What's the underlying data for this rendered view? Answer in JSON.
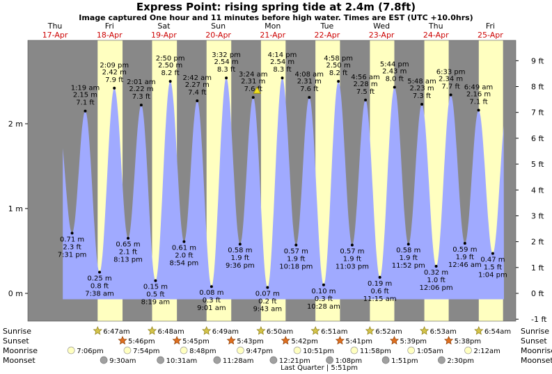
{
  "title": "Express Point: rising  spring tide at 2.4m (7.8ft)",
  "subtitle": "Image captured One hour and 11 minutes before high water. Times are EST (UTC +10.0hrs)",
  "days": [
    {
      "day": "Thu",
      "date": "17-Apr"
    },
    {
      "day": "Fri",
      "date": "18-Apr"
    },
    {
      "day": "Sat",
      "date": "19-Apr"
    },
    {
      "day": "Sun",
      "date": "20-Apr"
    },
    {
      "day": "Mon",
      "date": "21-Apr"
    },
    {
      "day": "Tue",
      "date": "22-Apr"
    },
    {
      "day": "Wed",
      "date": "23-Apr"
    },
    {
      "day": "Thu",
      "date": "24-Apr"
    },
    {
      "day": "Fri",
      "date": "25-Apr"
    }
  ],
  "colors": {
    "night": "#888888",
    "day": "#ffffc0",
    "water": "#a0aaff",
    "sun": "#d4c44a",
    "sunset": "#e07020",
    "moon": "#ffffc0",
    "moonset": "#a0a0a0"
  },
  "chart_data": {
    "type": "area",
    "ylabel_left_unit": "m",
    "ylabel_right_unit": "ft",
    "left_ticks": [
      "0 m",
      "1 m",
      "2 m"
    ],
    "right_ticks": [
      "-1 ft",
      "0 ft",
      "1 ft",
      "2 ft",
      "3 ft",
      "4 ft",
      "5 ft",
      "6 ft",
      "7 ft",
      "8 ft",
      "9 ft"
    ],
    "current_marker": {
      "time_hours": 101.1,
      "height_m": 2.4
    },
    "tides": [
      {
        "t": 19.52,
        "h": 0.71,
        "m": "0.71 m",
        "f": "2.3 ft",
        "time": "7:31 pm",
        "type": "low"
      },
      {
        "t": 25.32,
        "h": 2.15,
        "m": "2.15 m",
        "f": "7.1 ft",
        "time": "1:19 am",
        "type": "high"
      },
      {
        "t": 31.63,
        "h": 0.25,
        "m": "0.25 m",
        "f": "0.8 ft",
        "time": "7:38 am",
        "type": "low"
      },
      {
        "t": 38.15,
        "h": 2.42,
        "m": "2.42 m",
        "f": "7.9 ft",
        "time": "2:09 pm",
        "type": "high"
      },
      {
        "t": 44.22,
        "h": 0.65,
        "m": "0.65 m",
        "f": "2.1 ft",
        "time": "8:13 pm",
        "type": "low"
      },
      {
        "t": 50.02,
        "h": 2.22,
        "m": "2.22 m",
        "f": "7.3 ft",
        "time": "2:01 am",
        "type": "high"
      },
      {
        "t": 56.32,
        "h": 0.15,
        "m": "0.15 m",
        "f": "0.5 ft",
        "time": "8:19 am",
        "type": "low"
      },
      {
        "t": 62.83,
        "h": 2.5,
        "m": "2.50 m",
        "f": "8.2 ft",
        "time": "2:50 pm",
        "type": "high"
      },
      {
        "t": 68.9,
        "h": 0.61,
        "m": "0.61 m",
        "f": "2.0 ft",
        "time": "8:54 pm",
        "type": "low"
      },
      {
        "t": 74.7,
        "h": 2.27,
        "m": "2.27 m",
        "f": "7.4 ft",
        "time": "2:42 am",
        "type": "high"
      },
      {
        "t": 81.02,
        "h": 0.08,
        "m": "0.08 m",
        "f": "0.3 ft",
        "time": "9:01 am",
        "type": "low"
      },
      {
        "t": 87.53,
        "h": 2.54,
        "m": "2.54 m",
        "f": "8.3 ft",
        "time": "3:32 pm",
        "type": "high"
      },
      {
        "t": 93.6,
        "h": 0.58,
        "m": "0.58 m",
        "f": "1.9 ft",
        "time": "9:36 pm",
        "type": "low"
      },
      {
        "t": 99.4,
        "h": 2.31,
        "m": "2.31 m",
        "f": "7.6 ft",
        "time": "3:24 am",
        "type": "high"
      },
      {
        "t": 105.72,
        "h": 0.07,
        "m": "0.07 m",
        "f": "0.2 ft",
        "time": "9:43 am",
        "type": "low"
      },
      {
        "t": 112.23,
        "h": 2.54,
        "m": "2.54 m",
        "f": "8.3 ft",
        "time": "4:14 pm",
        "type": "high"
      },
      {
        "t": 118.3,
        "h": 0.57,
        "m": "0.57 m",
        "f": "1.9 ft",
        "time": "10:18 pm",
        "type": "low"
      },
      {
        "t": 124.13,
        "h": 2.31,
        "m": "2.31 m",
        "f": "7.6 ft",
        "time": "4:08 am",
        "type": "high"
      },
      {
        "t": 130.47,
        "h": 0.1,
        "m": "0.10 m",
        "f": "0.3 ft",
        "time": "10:28 am",
        "type": "low"
      },
      {
        "t": 136.97,
        "h": 2.5,
        "m": "2.50 m",
        "f": "8.2 ft",
        "time": "4:58 pm",
        "type": "high"
      },
      {
        "t": 143.05,
        "h": 0.57,
        "m": "0.57 m",
        "f": "1.9 ft",
        "time": "11:03 pm",
        "type": "low"
      },
      {
        "t": 148.93,
        "h": 2.28,
        "m": "2.28 m",
        "f": "7.5 ft",
        "time": "4:56 am",
        "type": "high"
      },
      {
        "t": 155.25,
        "h": 0.19,
        "m": "0.19 m",
        "f": "0.6 ft",
        "time": "11:15 am",
        "type": "low"
      },
      {
        "t": 161.73,
        "h": 2.43,
        "m": "2.43 m",
        "f": "8.0 ft",
        "time": "5:44 pm",
        "type": "high"
      },
      {
        "t": 167.87,
        "h": 0.58,
        "m": "0.58 m",
        "f": "1.9 ft",
        "time": "11:52 pm",
        "type": "low"
      },
      {
        "t": 173.8,
        "h": 2.23,
        "m": "2.23 m",
        "f": "7.3 ft",
        "time": "5:48 am",
        "type": "high"
      },
      {
        "t": 180.1,
        "h": 0.32,
        "m": "0.32 m",
        "f": "1.0 ft",
        "time": "12:06 pm",
        "type": "low"
      },
      {
        "t": 186.55,
        "h": 2.34,
        "m": "2.34 m",
        "f": "7.7 ft",
        "time": "6:33 pm",
        "type": "high"
      },
      {
        "t": 192.77,
        "h": 0.59,
        "m": "0.59 m",
        "f": "1.9 ft",
        "time": "12:46 am",
        "type": "low"
      },
      {
        "t": 198.82,
        "h": 2.16,
        "m": "2.16 m",
        "f": "7.1 ft",
        "time": "6:49 am",
        "type": "high"
      },
      {
        "t": 205.07,
        "h": 0.47,
        "m": "0.47 m",
        "f": "1.5 ft",
        "time": "1:04 pm",
        "type": "low"
      }
    ],
    "sun": [
      {
        "rise_t": 30.78,
        "set_t": 41.77
      },
      {
        "rise_t": 54.8,
        "set_t": 65.75
      },
      {
        "rise_t": 78.82,
        "set_t": 89.72
      },
      {
        "rise_t": 102.83,
        "set_t": 113.7
      },
      {
        "rise_t": 126.85,
        "set_t": 137.68
      },
      {
        "rise_t": 150.87,
        "set_t": 161.65
      },
      {
        "rise_t": 174.88,
        "set_t": 185.63
      },
      {
        "rise_t": 198.9,
        "set_t": 209.6
      }
    ]
  },
  "rows": {
    "labels": [
      "Sunrise",
      "Sunset",
      "Moonrise",
      "Moonset"
    ],
    "sunrise": [
      {
        "t": 30.78,
        "label": "6:47am"
      },
      {
        "t": 54.8,
        "label": "6:48am"
      },
      {
        "t": 78.82,
        "label": "6:49am"
      },
      {
        "t": 102.83,
        "label": "6:50am"
      },
      {
        "t": 126.85,
        "label": "6:51am"
      },
      {
        "t": 150.87,
        "label": "6:52am"
      },
      {
        "t": 174.88,
        "label": "6:53am"
      },
      {
        "t": 198.9,
        "label": "6:54am"
      }
    ],
    "sunset": [
      {
        "t": 41.77,
        "label": "5:46pm"
      },
      {
        "t": 65.75,
        "label": "5:45pm"
      },
      {
        "t": 89.72,
        "label": "5:43pm"
      },
      {
        "t": 113.7,
        "label": "5:42pm"
      },
      {
        "t": 137.68,
        "label": "5:41pm"
      },
      {
        "t": 161.65,
        "label": "5:39pm"
      },
      {
        "t": 185.63,
        "label": "5:38pm"
      }
    ],
    "moonrise": [
      {
        "t": 19.1,
        "label": "7:06pm"
      },
      {
        "t": 43.9,
        "label": "7:54pm"
      },
      {
        "t": 68.8,
        "label": "8:48pm"
      },
      {
        "t": 93.78,
        "label": "9:47pm"
      },
      {
        "t": 118.85,
        "label": "10:51pm"
      },
      {
        "t": 143.97,
        "label": "11:58pm"
      },
      {
        "t": 169.08,
        "label": "1:05am"
      },
      {
        "t": 194.2,
        "label": "2:12am"
      }
    ],
    "moonset": [
      {
        "t": 33.5,
        "label": "9:30am"
      },
      {
        "t": 58.52,
        "label": "10:31am"
      },
      {
        "t": 83.47,
        "label": "11:28am"
      },
      {
        "t": 108.35,
        "label": "12:21pm"
      },
      {
        "t": 133.13,
        "label": "1:08pm"
      },
      {
        "t": 157.85,
        "label": "1:51pm"
      },
      {
        "t": 182.5,
        "label": "2:30pm"
      }
    ],
    "moon_phase": "Last Quarter | 5:51pm"
  }
}
